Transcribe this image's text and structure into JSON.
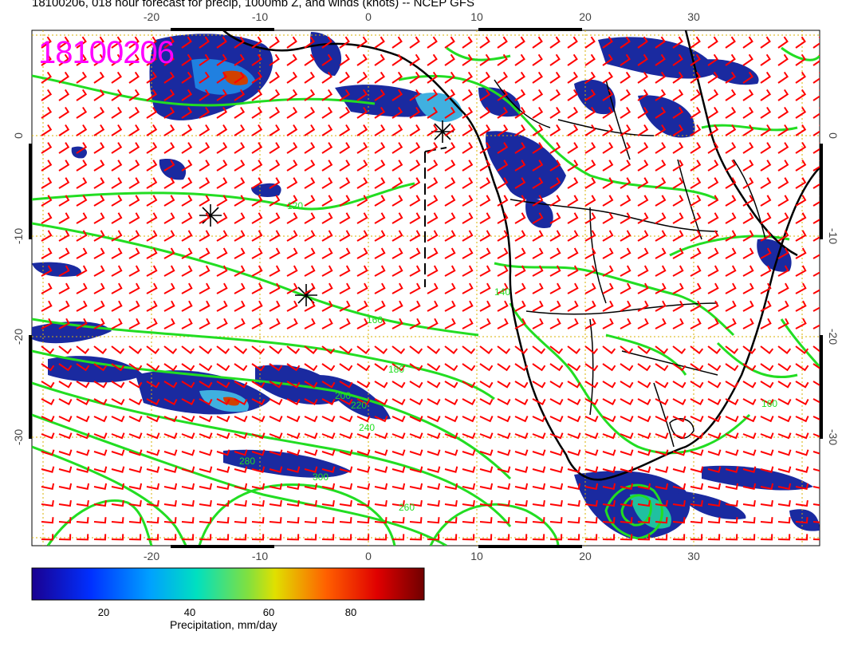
{
  "title": "18100206, 018 hour forecast for precip, 1000mb Z, and winds (knots) -- NCEP GFS",
  "stamp": "18100206",
  "map": {
    "x_ticks": [
      "-20",
      "-10",
      "0",
      "10",
      "20",
      "30"
    ],
    "y_ticks": [
      "0",
      "-10",
      "-20",
      "-30"
    ],
    "contour_labels": [
      "120",
      "140",
      "160",
      "180",
      "200",
      "220",
      "240",
      "260",
      "280",
      "300",
      "160"
    ],
    "colors": {
      "contour": "#22dd22",
      "wind": "#ff0000",
      "coast": "#000000",
      "grid": "#e0b400"
    }
  },
  "colorbar": {
    "ticks": [
      "20",
      "40",
      "60",
      "80"
    ],
    "label": "Precipitation, mm/day"
  }
}
